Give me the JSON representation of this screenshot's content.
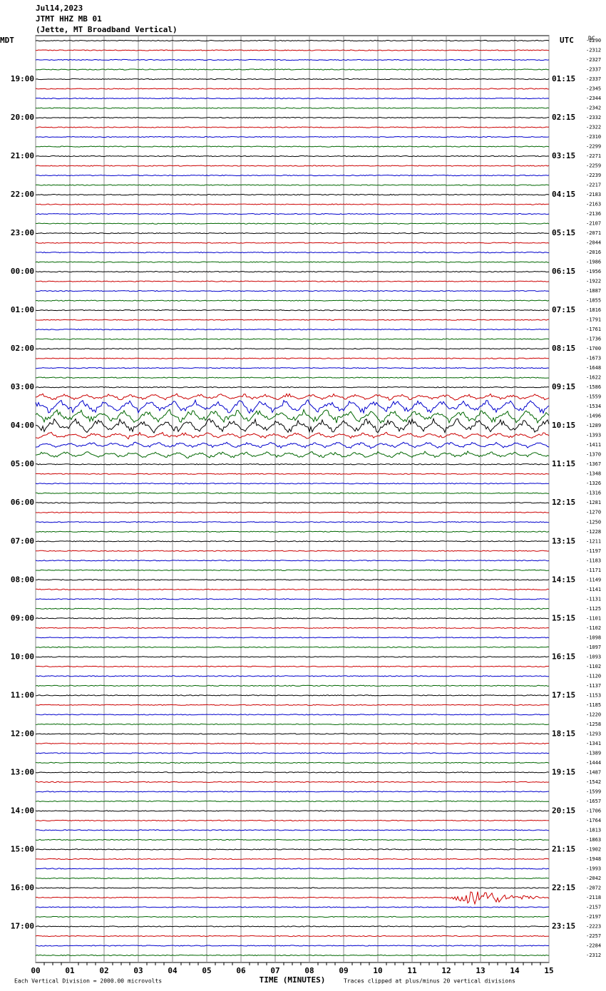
{
  "header": {
    "date": "Jul14,2023",
    "station": "JTMT HHZ MB 01",
    "location": "(Jette, MT Broadband Vertical)"
  },
  "left_zone": "MDT",
  "right_zone": "UTC",
  "dc_label": "DC",
  "left_times": [
    "19:00",
    "20:00",
    "21:00",
    "22:00",
    "23:00",
    "00:00",
    "01:00",
    "02:00",
    "03:00",
    "04:00",
    "05:00",
    "06:00",
    "07:00",
    "08:00",
    "09:00",
    "10:00",
    "11:00",
    "12:00",
    "13:00",
    "14:00",
    "15:00",
    "16:00",
    "17:00"
  ],
  "right_times": [
    "01:15",
    "02:15",
    "03:15",
    "04:15",
    "05:15",
    "06:15",
    "07:15",
    "08:15",
    "09:15",
    "10:15",
    "11:15",
    "12:15",
    "13:15",
    "14:15",
    "15:15",
    "16:15",
    "17:15",
    "18:15",
    "19:15",
    "20:15",
    "21:15",
    "22:15",
    "23:15"
  ],
  "dc_offsets": [
    -2290,
    -2312,
    -2327,
    -2337,
    -2337,
    -2345,
    -2344,
    -2342,
    -2332,
    -2322,
    -2310,
    -2299,
    -2271,
    -2259,
    -2239,
    -2217,
    -2183,
    -2163,
    -2136,
    -2107,
    -2071,
    -2044,
    -2016,
    -1986,
    -1956,
    -1922,
    -1887,
    -1855,
    -1816,
    -1791,
    -1761,
    -1736,
    -1700,
    -1673,
    -1648,
    -1622,
    -1586,
    -1559,
    -1534,
    -1496,
    -1289,
    -1393,
    -1411,
    -1370,
    -1367,
    -1348,
    -1326,
    -1316,
    -1281,
    -1270,
    -1250,
    -1228,
    -1211,
    -1197,
    -1183,
    -1171,
    -1149,
    -1141,
    -1131,
    -1125,
    -1101,
    -1102,
    -1098,
    -1097,
    -1093,
    -1102,
    -1120,
    -1137,
    -1153,
    -1185,
    -1220,
    -1258,
    -1293,
    -1341,
    -1389,
    -1444,
    -1487,
    -1542,
    -1599,
    -1657,
    -1706,
    -1764,
    -1813,
    -1863,
    -1902,
    -1948,
    -1993,
    -2042,
    -2072,
    -2118,
    -2157,
    -2197,
    -2223,
    -2257,
    -2284,
    -2312
  ],
  "x_ticks": [
    "00",
    "01",
    "02",
    "03",
    "04",
    "05",
    "06",
    "07",
    "08",
    "09",
    "10",
    "11",
    "12",
    "13",
    "14",
    "15"
  ],
  "x_axis_title": "TIME (MINUTES)",
  "footer": {
    "scale": "Each Vertical Division = 2000.00 microvolts",
    "clip": "Traces clipped at plus/minus 20 vertical divisions"
  },
  "trace_colors": [
    "#000000",
    "#cc0000",
    "#0000cc",
    "#006600"
  ]
}
